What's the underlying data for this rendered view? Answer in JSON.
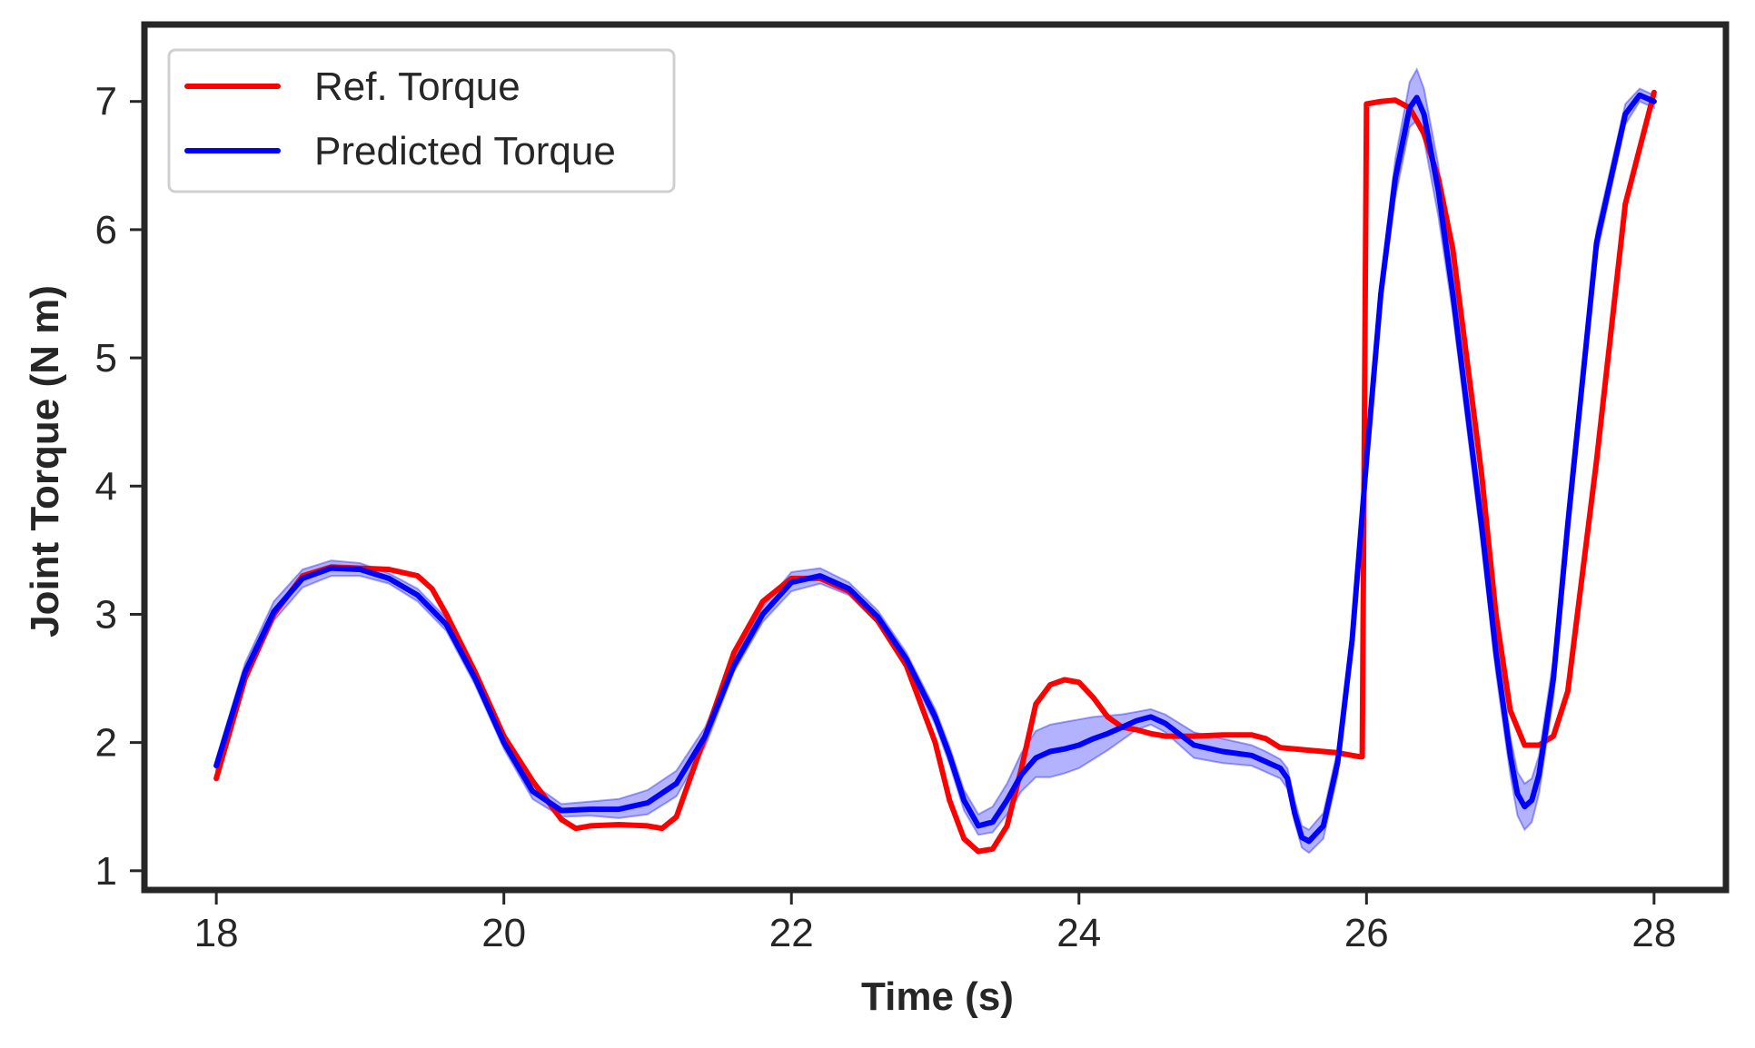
{
  "chart_data": {
    "type": "line",
    "title": "",
    "xlabel": "Time (s)",
    "ylabel": "Joint Torque (N m)",
    "xlim": [
      17.5,
      28.5
    ],
    "ylim": [
      0.85,
      7.6
    ],
    "xticks": [
      18,
      20,
      22,
      24,
      26,
      28
    ],
    "yticks": [
      1,
      2,
      3,
      4,
      5,
      6,
      7
    ],
    "xtick_labels": [
      "18",
      "20",
      "22",
      "24",
      "26",
      "28"
    ],
    "ytick_labels": [
      "1",
      "2",
      "3",
      "4",
      "5",
      "6",
      "7"
    ],
    "legend_position": "upper-left",
    "series": [
      {
        "name": "Ref. Torque",
        "color": "#ff0000",
        "x": [
          18.0,
          18.2,
          18.4,
          18.6,
          18.8,
          19.0,
          19.2,
          19.4,
          19.5,
          19.6,
          19.8,
          20.0,
          20.2,
          20.4,
          20.5,
          20.6,
          20.8,
          21.0,
          21.1,
          21.2,
          21.4,
          21.6,
          21.8,
          22.0,
          22.2,
          22.4,
          22.6,
          22.8,
          23.0,
          23.1,
          23.2,
          23.3,
          23.4,
          23.5,
          23.6,
          23.7,
          23.8,
          23.9,
          24.0,
          24.1,
          24.2,
          24.3,
          24.4,
          24.5,
          24.6,
          24.8,
          25.0,
          25.2,
          25.3,
          25.4,
          25.6,
          25.8,
          25.95,
          25.97,
          26.0,
          26.1,
          26.2,
          26.3,
          26.4,
          26.5,
          26.6,
          26.8,
          26.9,
          27.0,
          27.1,
          27.2,
          27.3,
          27.4,
          27.6,
          27.8,
          28.0
        ],
        "y": [
          1.72,
          2.5,
          3.0,
          3.3,
          3.37,
          3.36,
          3.35,
          3.3,
          3.2,
          3.0,
          2.55,
          2.05,
          1.7,
          1.4,
          1.33,
          1.35,
          1.36,
          1.35,
          1.33,
          1.42,
          2.05,
          2.7,
          3.1,
          3.28,
          3.28,
          3.18,
          2.95,
          2.6,
          2.0,
          1.55,
          1.25,
          1.15,
          1.17,
          1.35,
          1.8,
          2.3,
          2.45,
          2.49,
          2.47,
          2.35,
          2.2,
          2.12,
          2.1,
          2.07,
          2.05,
          2.05,
          2.06,
          2.06,
          2.03,
          1.96,
          1.94,
          1.92,
          1.89,
          1.89,
          6.98,
          7.0,
          7.01,
          6.95,
          6.75,
          6.4,
          5.85,
          4.1,
          3.0,
          2.25,
          1.98,
          1.98,
          2.05,
          2.4,
          4.2,
          6.2,
          7.07
        ]
      },
      {
        "name": "Predicted Torque",
        "color": "#0000ff",
        "band_color": "#0000ff",
        "x": [
          18.0,
          18.2,
          18.4,
          18.6,
          18.8,
          19.0,
          19.2,
          19.4,
          19.6,
          19.8,
          20.0,
          20.2,
          20.4,
          20.6,
          20.8,
          21.0,
          21.2,
          21.4,
          21.6,
          21.8,
          22.0,
          22.2,
          22.4,
          22.6,
          22.8,
          23.0,
          23.1,
          23.2,
          23.3,
          23.4,
          23.5,
          23.6,
          23.7,
          23.8,
          23.9,
          24.0,
          24.1,
          24.2,
          24.3,
          24.4,
          24.5,
          24.6,
          24.8,
          25.0,
          25.2,
          25.3,
          25.4,
          25.45,
          25.5,
          25.55,
          25.6,
          25.7,
          25.8,
          25.9,
          26.0,
          26.1,
          26.2,
          26.3,
          26.35,
          26.4,
          26.5,
          26.6,
          26.8,
          26.9,
          27.0,
          27.05,
          27.1,
          27.15,
          27.2,
          27.3,
          27.4,
          27.6,
          27.8,
          27.9,
          28.0
        ],
        "y": [
          1.82,
          2.55,
          3.02,
          3.28,
          3.36,
          3.35,
          3.28,
          3.15,
          2.92,
          2.5,
          2.0,
          1.62,
          1.47,
          1.48,
          1.48,
          1.53,
          1.68,
          2.05,
          2.6,
          3.0,
          3.25,
          3.3,
          3.2,
          2.98,
          2.65,
          2.2,
          1.9,
          1.55,
          1.35,
          1.38,
          1.55,
          1.75,
          1.88,
          1.93,
          1.95,
          1.98,
          2.03,
          2.07,
          2.12,
          2.17,
          2.2,
          2.15,
          1.98,
          1.93,
          1.9,
          1.85,
          1.8,
          1.72,
          1.45,
          1.26,
          1.23,
          1.35,
          1.85,
          2.8,
          4.2,
          5.5,
          6.4,
          6.95,
          7.03,
          6.9,
          6.3,
          5.5,
          3.7,
          2.7,
          1.9,
          1.6,
          1.5,
          1.55,
          1.75,
          2.5,
          3.7,
          5.9,
          6.9,
          7.05,
          7.0
        ],
        "band_upper": [
          1.87,
          2.62,
          3.1,
          3.35,
          3.42,
          3.4,
          3.32,
          3.2,
          2.97,
          2.55,
          2.05,
          1.68,
          1.52,
          1.54,
          1.56,
          1.63,
          1.78,
          2.12,
          2.65,
          3.06,
          3.33,
          3.36,
          3.25,
          3.03,
          2.7,
          2.26,
          1.97,
          1.63,
          1.44,
          1.5,
          1.68,
          1.92,
          2.09,
          2.14,
          2.16,
          2.18,
          2.2,
          2.21,
          2.22,
          2.24,
          2.26,
          2.22,
          2.08,
          2.03,
          1.98,
          1.93,
          1.87,
          1.8,
          1.55,
          1.35,
          1.32,
          1.45,
          1.95,
          2.9,
          4.3,
          5.6,
          6.55,
          7.15,
          7.25,
          7.1,
          6.5,
          5.65,
          3.85,
          2.85,
          2.05,
          1.77,
          1.68,
          1.72,
          1.9,
          2.65,
          3.85,
          6.0,
          6.98,
          7.1,
          7.05
        ],
        "band_lower": [
          1.77,
          2.48,
          2.95,
          3.21,
          3.3,
          3.3,
          3.24,
          3.1,
          2.87,
          2.45,
          1.95,
          1.56,
          1.42,
          1.43,
          1.41,
          1.44,
          1.58,
          1.97,
          2.55,
          2.94,
          3.18,
          3.24,
          3.15,
          2.93,
          2.6,
          2.14,
          1.83,
          1.47,
          1.28,
          1.3,
          1.44,
          1.62,
          1.73,
          1.73,
          1.76,
          1.8,
          1.87,
          1.94,
          2.02,
          2.1,
          2.14,
          2.08,
          1.88,
          1.84,
          1.82,
          1.77,
          1.72,
          1.64,
          1.38,
          1.18,
          1.14,
          1.25,
          1.75,
          2.7,
          4.1,
          5.4,
          6.25,
          6.8,
          6.85,
          6.7,
          6.1,
          5.35,
          3.55,
          2.55,
          1.75,
          1.43,
          1.32,
          1.38,
          1.6,
          2.35,
          3.55,
          5.8,
          6.82,
          7.0,
          6.95
        ]
      }
    ]
  }
}
